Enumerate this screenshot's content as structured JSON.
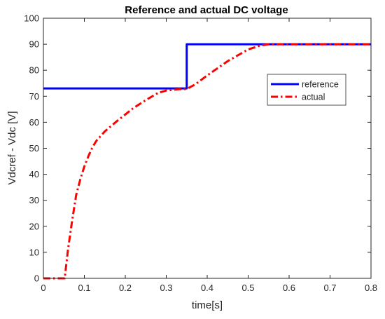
{
  "chart_data": {
    "type": "line",
    "title": "Reference and actual DC voltage",
    "xlabel": "time[s]",
    "ylabel": "Vdcref - Vdc [V]",
    "xlim": [
      0,
      0.8
    ],
    "ylim": [
      0,
      100
    ],
    "xticks": [
      0,
      0.1,
      0.2,
      0.3,
      0.4,
      0.5,
      0.6,
      0.7,
      0.8
    ],
    "xtick_labels": [
      "0",
      "0.1",
      "0.2",
      "0.3",
      "0.4",
      "0.5",
      "0.6",
      "0.7",
      "0.8"
    ],
    "yticks": [
      0,
      10,
      20,
      30,
      40,
      50,
      60,
      70,
      80,
      90,
      100
    ],
    "ytick_labels": [
      "0",
      "10",
      "20",
      "30",
      "40",
      "50",
      "60",
      "70",
      "80",
      "90",
      "100"
    ],
    "grid": false,
    "legend_position": "right, upper-middle",
    "series": [
      {
        "name": "reference",
        "color": "#0000ff",
        "style": "solid",
        "x": [
          0,
          0.35,
          0.35,
          0.8
        ],
        "y": [
          73,
          73,
          90,
          90
        ]
      },
      {
        "name": "actual",
        "color": "#ff0000",
        "style": "dashdot",
        "x": [
          0,
          0.052,
          0.06,
          0.07,
          0.08,
          0.09,
          0.1,
          0.11,
          0.12,
          0.13,
          0.15,
          0.18,
          0.2,
          0.22,
          0.25,
          0.28,
          0.3,
          0.33,
          0.35,
          0.37,
          0.4,
          0.45,
          0.5,
          0.53,
          0.55,
          0.6,
          0.7,
          0.8
        ],
        "y": [
          0,
          0,
          11,
          22,
          32,
          38,
          43,
          47,
          50.5,
          53,
          56.5,
          60.5,
          63,
          65.5,
          68.5,
          71.3,
          72.2,
          72.7,
          72.8,
          74.5,
          78,
          83.5,
          88,
          89.5,
          90,
          90,
          90,
          90
        ]
      }
    ]
  }
}
